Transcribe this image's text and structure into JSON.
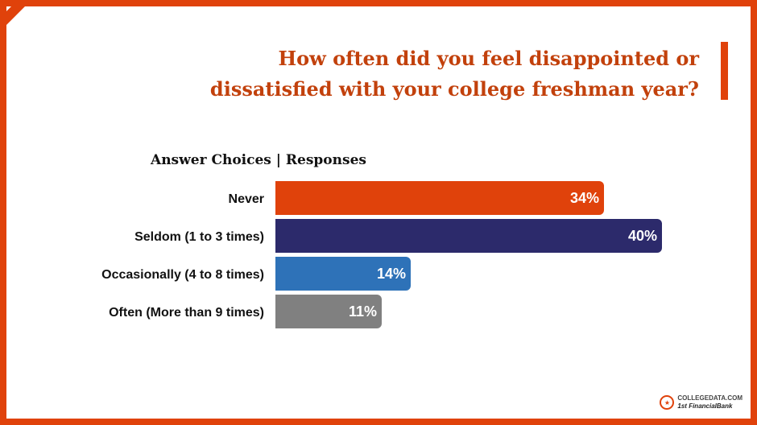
{
  "title": {
    "line1": "How often did you feel disappointed or",
    "line2": "dissatisfied with your college freshman year?"
  },
  "colors": {
    "accent": "#e0420b",
    "title": "#c2410c"
  },
  "chart_data": {
    "type": "bar",
    "orientation": "horizontal",
    "header": "Answer Choices | Responses",
    "categories": [
      "Never",
      "Seldom (1 to 3 times)",
      "Occasionally (4 to 8 times)",
      "Often (More than 9 times)"
    ],
    "values": [
      34,
      40,
      14,
      11
    ],
    "value_labels": [
      "34%",
      "40%",
      "14%",
      "11%"
    ],
    "colors": [
      "#e0420b",
      "#2c2a6b",
      "#2e72b8",
      "#808080"
    ],
    "xlim": [
      0,
      40
    ],
    "grid": false,
    "legend": "none"
  },
  "logo": {
    "line1": "COLLEGEDATA.COM",
    "line2": "1st FinancialBank"
  }
}
